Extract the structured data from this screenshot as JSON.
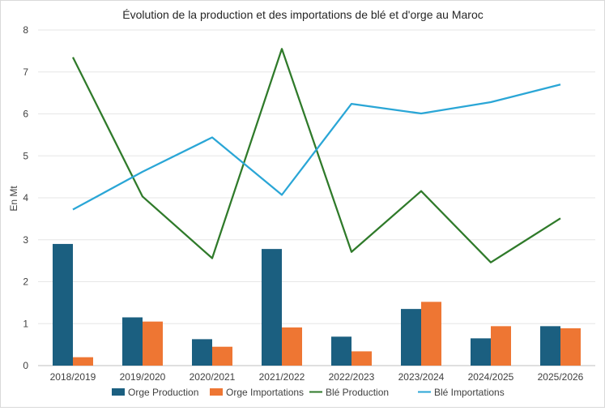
{
  "chart_data": {
    "type": "bar+line",
    "title": "Évolution de la production et des importations de blé et d'orge au Maroc",
    "ylabel": "En Mt",
    "xlabel": "",
    "ylim": [
      0,
      8
    ],
    "yticks": [
      0,
      1,
      2,
      3,
      4,
      5,
      6,
      7,
      8
    ],
    "grid": true,
    "legend_position": "bottom",
    "categories": [
      "2018/2019",
      "2019/2020",
      "2020/2021",
      "2021/2022",
      "2022/2023",
      "2023/2024",
      "2024/2025",
      "2025/2026"
    ],
    "series": [
      {
        "name": "Orge Production",
        "kind": "bar",
        "color": "#1b5f80",
        "values": [
          2.9,
          1.15,
          0.63,
          2.78,
          0.69,
          1.35,
          0.65,
          0.94
        ]
      },
      {
        "name": "Orge Importations",
        "kind": "bar",
        "color": "#ee7633",
        "values": [
          0.2,
          1.05,
          0.45,
          0.91,
          0.34,
          1.52,
          0.94,
          0.89
        ]
      },
      {
        "name": "Blé Production",
        "kind": "line",
        "color": "#2f7a2a",
        "values": [
          7.35,
          4.03,
          2.56,
          7.55,
          2.71,
          4.16,
          2.46,
          3.51
        ]
      },
      {
        "name": "Blé Importations",
        "kind": "line",
        "color": "#2aa6d6",
        "values": [
          3.72,
          4.62,
          5.44,
          4.07,
          6.24,
          6.01,
          6.28,
          6.7
        ]
      }
    ]
  }
}
